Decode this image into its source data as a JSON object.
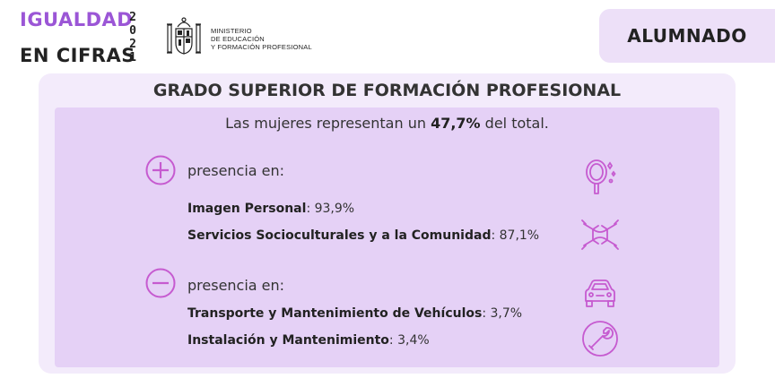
{
  "brand": {
    "line1": "IGUALDAD",
    "line2": "EN CIFRAS",
    "year_digits": [
      "2",
      "0",
      "2",
      "1"
    ]
  },
  "ministry": {
    "lines": [
      "MINISTERIO",
      "DE EDUCACIÓN",
      "Y FORMACIÓN PROFESIONAL"
    ]
  },
  "section_tag": "ALUMNADO",
  "card": {
    "title": "GRADO SUPERIOR DE FORMACIÓN PROFESIONAL",
    "summary": {
      "prefix": "Las mujeres representan un ",
      "value": "47,7%",
      "suffix": " del total."
    },
    "more": {
      "label": "presencia en:",
      "items": [
        {
          "name": "Imagen Personal",
          "value": ": 93,9%"
        },
        {
          "name": "Servicios Socioculturales y a la Comunidad",
          "value": ": 87,1%"
        }
      ]
    },
    "less": {
      "label": "presencia en:",
      "items": [
        {
          "name": "Transporte y Mantenimiento de Vehículos",
          "value": ": 3,7%"
        },
        {
          "name": "Instalación y Mantenimiento",
          "value": ": 3,4%"
        }
      ]
    }
  },
  "icons": {
    "plus": "plus-circle-icon",
    "minus": "minus-circle-icon",
    "mirror": "hand-mirror-icon",
    "hands": "joined-hands-icon",
    "car": "car-icon",
    "wrench": "wrench-icon",
    "crest": "coat-of-arms-icon"
  },
  "colors": {
    "accent": "#9b56d6",
    "icon": "#c65bd0",
    "card_bg": "#f3ebfb",
    "panel_bg": "#e5d1f6",
    "tag_bg": "#ede0f8"
  }
}
